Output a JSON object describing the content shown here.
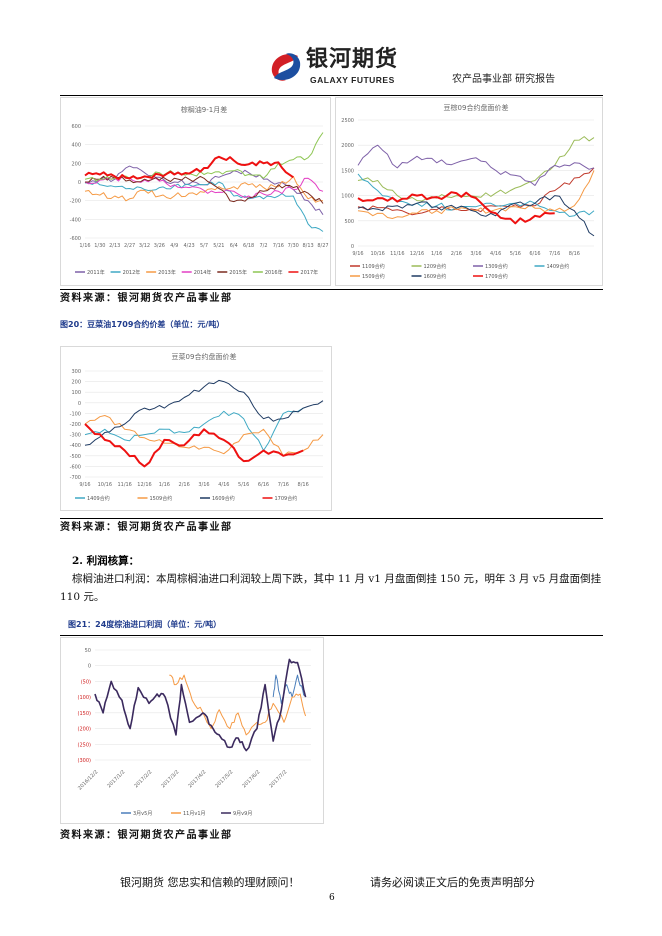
{
  "header": {
    "logo_cn": "银河期货",
    "logo_en": "GALAXY FUTURES",
    "dept": "农产品事业部  研究报告"
  },
  "source_label": "资料来源：银河期货农产品事业部",
  "fig20_caption": "图20：豆菜油1709合约价差（单位：元/吨）",
  "section": {
    "heading": "2. 利润核算：",
    "paragraph": "棕榈油进口利润：本周棕榈油进口利润较上周下跌，其中 11 月 v1 月盘面倒挂 150 元，明年 3 月 v5 月盘面倒挂 110 元。"
  },
  "fig21_caption": "图21：24度棕油进口利润（单位：元/吨）",
  "footer": {
    "left": "银河期货  您忠实和信赖的理财顾问！",
    "right": "请务必阅读正文后的免责声明部分",
    "page": "6"
  },
  "chart_data": [
    {
      "type": "line",
      "title": "棕榈油9-1月差",
      "ylim": [
        -600,
        600
      ],
      "yticks": [
        600,
        400,
        200,
        0,
        -200,
        -400,
        -600
      ],
      "categories": [
        "1/16",
        "1/30",
        "2/13",
        "2/27",
        "3/12",
        "3/26",
        "4/9",
        "4/23",
        "5/7",
        "5/21",
        "6/4",
        "6/18",
        "7/2",
        "7/16",
        "7/30",
        "8/13",
        "8/27"
      ],
      "series": [
        {
          "name": "2011年",
          "color": "#7e61a8",
          "values": [
            0,
            20,
            30,
            170,
            100,
            50,
            0,
            -20,
            -30,
            50,
            120,
            100,
            30,
            -10,
            -80,
            -200,
            -350
          ]
        },
        {
          "name": "2012年",
          "color": "#3fa9c4",
          "values": [
            -10,
            -30,
            -50,
            -70,
            -80,
            -60,
            -40,
            -30,
            -30,
            0,
            -150,
            -180,
            -180,
            -150,
            -150,
            -450,
            -530
          ]
        },
        {
          "name": "2013年",
          "color": "#f59a45",
          "values": [
            -100,
            -140,
            -150,
            -180,
            -90,
            -150,
            -150,
            -120,
            -110,
            -50,
            -50,
            -30,
            -60,
            -50,
            60,
            -180,
            -200
          ]
        },
        {
          "name": "2014年",
          "color": "#e33fc4",
          "values": [
            0,
            20,
            40,
            40,
            20,
            10,
            -30,
            -60,
            -90,
            -110,
            -100,
            -150,
            -130,
            -100,
            -80,
            40,
            -100
          ]
        },
        {
          "name": "2015年",
          "color": "#7a2a1f",
          "values": [
            0,
            30,
            40,
            20,
            30,
            20,
            40,
            30,
            40,
            -70,
            -210,
            -170,
            -100,
            -30,
            -60,
            -120,
            -230
          ]
        },
        {
          "name": "2016年",
          "color": "#8dc653",
          "values": [
            30,
            30,
            40,
            40,
            60,
            100,
            90,
            90,
            80,
            110,
            120,
            80,
            40,
            200,
            240,
            260,
            530
          ]
        },
        {
          "name": "2017年",
          "color": "#ee1111",
          "width": 2,
          "values": [
            70,
            80,
            60,
            40,
            60,
            80,
            80,
            90,
            150,
            270,
            230,
            190,
            200,
            210,
            50,
            null,
            null
          ]
        }
      ]
    },
    {
      "type": "line",
      "title": "豆棕09合约盘面价差",
      "ylim": [
        0,
        2500
      ],
      "yticks": [
        2500,
        2000,
        1500,
        1000,
        500,
        0
      ],
      "categories": [
        "9/16",
        "10/16",
        "11/16",
        "12/16",
        "1/16",
        "2/16",
        "3/16",
        "4/16",
        "5/16",
        "6/16",
        "7/16",
        "8/16",
        ""
      ],
      "series": [
        {
          "name": "1109合约",
          "color": "#c0392b",
          "values": [
            780,
            760,
            720,
            640,
            720,
            730,
            720,
            790,
            820,
            800,
            1100,
            1350,
            1550
          ]
        },
        {
          "name": "1209合约",
          "color": "#9bbb59",
          "values": [
            1300,
            1300,
            1000,
            900,
            950,
            1000,
            980,
            1050,
            1150,
            1300,
            1600,
            2100,
            2150
          ]
        },
        {
          "name": "1309合约",
          "color": "#7e61a8",
          "values": [
            1600,
            2000,
            1550,
            1780,
            1650,
            1650,
            1750,
            1500,
            1400,
            1200,
            1600,
            1650,
            1550
          ]
        },
        {
          "name": "1409合约",
          "color": "#3fa9c4",
          "values": [
            1430,
            1100,
            880,
            850,
            800,
            750,
            780,
            800,
            850,
            850,
            700,
            600,
            700
          ]
        },
        {
          "name": "1509合约",
          "color": "#f59a45",
          "values": [
            700,
            650,
            580,
            650,
            700,
            720,
            700,
            720,
            780,
            750,
            700,
            800,
            1500
          ]
        },
        {
          "name": "1609合约",
          "color": "#1f3b63",
          "values": [
            750,
            730,
            800,
            850,
            780,
            750,
            680,
            600,
            850,
            850,
            1000,
            700,
            200
          ]
        },
        {
          "name": "1709合约",
          "color": "#ee1111",
          "width": 2,
          "values": [
            950,
            950,
            880,
            1000,
            970,
            1050,
            950,
            650,
            450,
            600,
            650,
            null,
            null
          ]
        }
      ]
    },
    {
      "type": "line",
      "title": "豆菜09合约盘面价差",
      "ylim": [
        -700,
        300
      ],
      "yticks": [
        300,
        200,
        100,
        0,
        -100,
        -200,
        -300,
        -400,
        -500,
        -600,
        -700
      ],
      "categories": [
        "9/16",
        "10/16",
        "11/16",
        "12/16",
        "1/16",
        "2/16",
        "3/16",
        "4/16",
        "5/16",
        "6/16",
        "7/16",
        "8/16",
        ""
      ],
      "series": [
        {
          "name": "1409合约",
          "color": "#3fa9c4",
          "values": [
            -300,
            -250,
            -350,
            -300,
            -250,
            -280,
            -200,
            -80,
            -150,
            -450,
            -100,
            -50,
            null
          ]
        },
        {
          "name": "1509合约",
          "color": "#f59a45",
          "values": [
            -200,
            -120,
            -250,
            -330,
            -380,
            -420,
            -420,
            -480,
            -300,
            -250,
            -500,
            -450,
            -300
          ]
        },
        {
          "name": "1609合约",
          "color": "#1f3b63",
          "values": [
            -400,
            -280,
            -200,
            -50,
            -50,
            50,
            150,
            200,
            100,
            -150,
            -150,
            -50,
            20
          ]
        },
        {
          "name": "1709合约",
          "color": "#ee1111",
          "width": 2,
          "values": [
            -200,
            -350,
            -450,
            -600,
            -350,
            -400,
            -250,
            -350,
            -550,
            -450,
            -500,
            -450,
            null
          ]
        }
      ]
    },
    {
      "type": "line",
      "title": "",
      "ylim": [
        -300,
        50
      ],
      "yticks": [
        50,
        0,
        -50,
        -100,
        -150,
        -200,
        -250,
        -300
      ],
      "ytick_labels": [
        "50",
        "0",
        "(50)",
        "(100)",
        "(150)",
        "(200)",
        "(250)",
        "(300)"
      ],
      "categories": [
        "2016/12/2",
        "2017/1/2",
        "2017/2/2",
        "2017/3/2",
        "2017/4/2",
        "2017/5/2",
        "2017/6/2",
        "2017/7/2"
      ],
      "xmax": 8,
      "series": [
        {
          "name": "3月v5月",
          "color": "#4a7ebb",
          "points": [
            [
              6.6,
              -100
            ],
            [
              6.7,
              -30
            ],
            [
              6.9,
              -120
            ],
            [
              7.1,
              -60
            ],
            [
              7.3,
              -100
            ],
            [
              7.5,
              -30
            ],
            [
              7.7,
              -80
            ],
            [
              7.8,
              -100
            ]
          ]
        },
        {
          "name": "11月v1月",
          "color": "#f59a45",
          "points": [
            [
              2.75,
              -30
            ],
            [
              3,
              -60
            ],
            [
              3.3,
              -30
            ],
            [
              3.6,
              -110
            ],
            [
              4,
              -150
            ],
            [
              4.3,
              -200
            ],
            [
              4.6,
              -140
            ],
            [
              5,
              -200
            ],
            [
              5.3,
              -150
            ],
            [
              5.6,
              -220
            ],
            [
              6,
              -180
            ],
            [
              6.3,
              -180
            ],
            [
              6.6,
              -120
            ],
            [
              7,
              -180
            ],
            [
              7.3,
              -100
            ],
            [
              7.6,
              -90
            ],
            [
              7.8,
              -160
            ]
          ]
        },
        {
          "name": "9月v9月",
          "color": "#3b2a5e",
          "width": 1.6,
          "points": [
            [
              0,
              -90
            ],
            [
              0.3,
              -150
            ],
            [
              0.6,
              -50
            ],
            [
              1,
              -110
            ],
            [
              1.3,
              -200
            ],
            [
              1.6,
              -70
            ],
            [
              2,
              -120
            ],
            [
              2.3,
              -90
            ],
            [
              2.6,
              -100
            ],
            [
              3,
              -220
            ],
            [
              3.2,
              -60
            ],
            [
              3.5,
              -180
            ],
            [
              4,
              -150
            ],
            [
              4.3,
              -190
            ],
            [
              4.6,
              -220
            ],
            [
              5,
              -260
            ],
            [
              5.3,
              -230
            ],
            [
              5.6,
              -270
            ],
            [
              6,
              -200
            ],
            [
              6.3,
              -60
            ],
            [
              6.6,
              -240
            ],
            [
              6.9,
              -140
            ],
            [
              7.2,
              20
            ],
            [
              7.5,
              10
            ],
            [
              7.8,
              -100
            ]
          ]
        }
      ]
    }
  ]
}
